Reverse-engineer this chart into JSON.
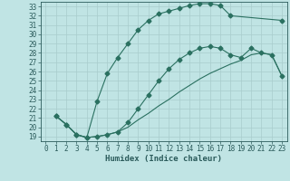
{
  "title": "",
  "xlabel": "Humidex (Indice chaleur)",
  "bg_color": "#c0e4e4",
  "line_color": "#2a7060",
  "grid_color": "#a8cccc",
  "xlim": [
    -0.5,
    23.5
  ],
  "ylim": [
    18.5,
    33.5
  ],
  "xticks": [
    0,
    1,
    2,
    3,
    4,
    5,
    6,
    7,
    8,
    9,
    10,
    11,
    12,
    13,
    14,
    15,
    16,
    17,
    18,
    19,
    20,
    21,
    22,
    23
  ],
  "yticks": [
    19,
    20,
    21,
    22,
    23,
    24,
    25,
    26,
    27,
    28,
    29,
    30,
    31,
    32,
    33
  ],
  "curve1_x": [
    1,
    2,
    3,
    4,
    5,
    6,
    7,
    8,
    9,
    10,
    11,
    12,
    13,
    14,
    15,
    16,
    17,
    18,
    23
  ],
  "curve1_y": [
    21.2,
    20.3,
    19.2,
    18.9,
    22.8,
    25.8,
    27.5,
    29.0,
    30.5,
    31.5,
    32.2,
    32.5,
    32.8,
    33.1,
    33.3,
    33.3,
    33.1,
    32.0,
    31.5
  ],
  "curve2_x": [
    1,
    2,
    3,
    4,
    5,
    6,
    7,
    8,
    9,
    10,
    11,
    12,
    13,
    14,
    15,
    16,
    17,
    18,
    19,
    20,
    21,
    22,
    23
  ],
  "curve2_y": [
    21.2,
    20.3,
    19.2,
    18.9,
    19.0,
    19.2,
    19.5,
    20.5,
    22.0,
    23.5,
    25.0,
    26.3,
    27.3,
    28.0,
    28.5,
    28.7,
    28.5,
    27.8,
    27.5,
    28.5,
    28.0,
    27.8,
    25.5
  ],
  "curve3_x": [
    1,
    2,
    3,
    4,
    5,
    6,
    7,
    8,
    9,
    10,
    11,
    12,
    13,
    14,
    15,
    16,
    17,
    18,
    19,
    20,
    21,
    22,
    23
  ],
  "curve3_y": [
    21.2,
    20.3,
    19.2,
    18.9,
    19.0,
    19.2,
    19.5,
    20.0,
    20.8,
    21.5,
    22.3,
    23.0,
    23.8,
    24.5,
    25.2,
    25.8,
    26.3,
    26.8,
    27.2,
    27.8,
    28.0,
    27.8,
    25.5
  ],
  "tick_fontsize": 5.5,
  "xlabel_fontsize": 6.5,
  "tick_color": "#2a5a5a"
}
